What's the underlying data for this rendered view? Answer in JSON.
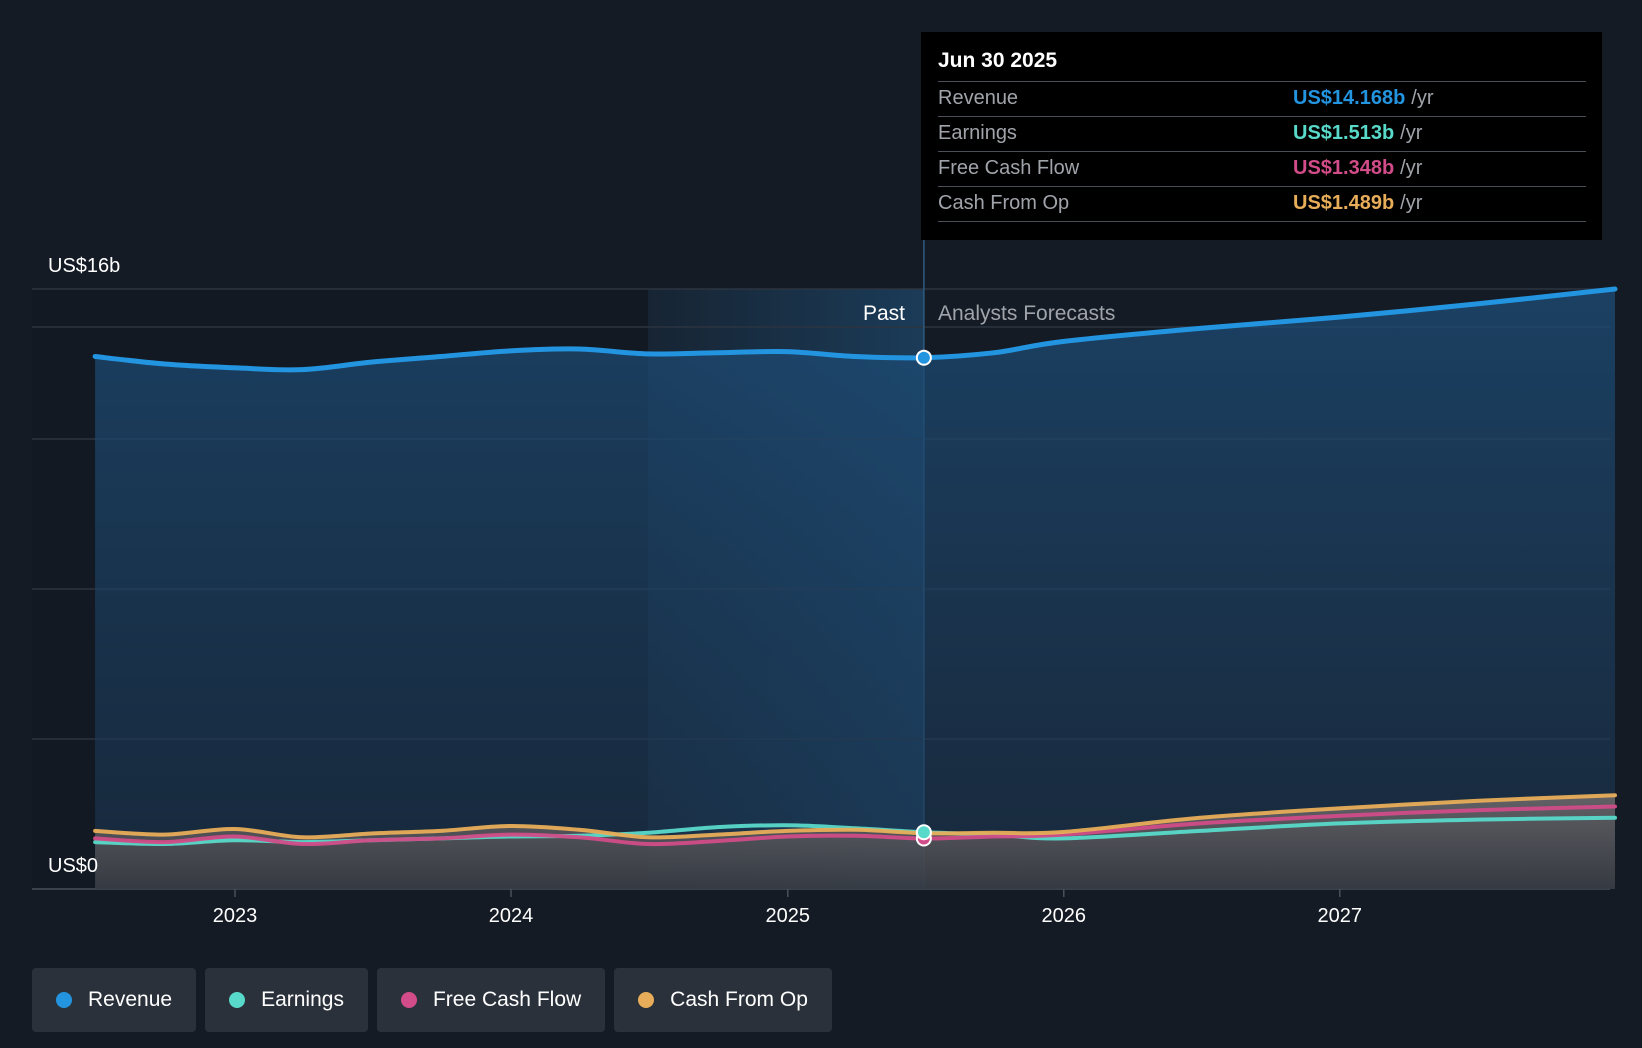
{
  "chart_data": {
    "type": "area",
    "x_ticks": [
      "2023",
      "2024",
      "2025",
      "2026",
      "2027"
    ],
    "y_axis_labels": {
      "top": "US$16b",
      "bottom": "US$0"
    },
    "ylim": [
      0,
      16
    ],
    "y_unit": "US$ billions",
    "divider_labels": {
      "past": "Past",
      "forecast": "Analysts Forecasts"
    },
    "past_forecast_split": "2025-06-30",
    "series": [
      {
        "name": "Revenue",
        "color": "#2394df",
        "points": [
          [
            "2022-06-30",
            14.2
          ],
          [
            "2022-09-30",
            14.0
          ],
          [
            "2022-12-31",
            13.9
          ],
          [
            "2023-03-31",
            13.85
          ],
          [
            "2023-06-30",
            14.05
          ],
          [
            "2023-09-30",
            14.2
          ],
          [
            "2023-12-31",
            14.35
          ],
          [
            "2024-03-31",
            14.4
          ],
          [
            "2024-06-30",
            14.27
          ],
          [
            "2024-09-30",
            14.3
          ],
          [
            "2024-12-31",
            14.33
          ],
          [
            "2025-03-31",
            14.2
          ],
          [
            "2025-06-30",
            14.168
          ],
          [
            "2025-09-30",
            14.3
          ],
          [
            "2025-12-31",
            14.6
          ],
          [
            "2026-06-30",
            14.95
          ],
          [
            "2026-12-31",
            15.25
          ],
          [
            "2027-06-30",
            15.6
          ],
          [
            "2027-12-31",
            16.0
          ]
        ]
      },
      {
        "name": "Earnings",
        "color": "#58d9c9",
        "points": [
          [
            "2022-06-30",
            1.25
          ],
          [
            "2022-09-30",
            1.2
          ],
          [
            "2022-12-31",
            1.3
          ],
          [
            "2023-03-31",
            1.25
          ],
          [
            "2023-06-30",
            1.3
          ],
          [
            "2023-09-30",
            1.35
          ],
          [
            "2023-12-31",
            1.4
          ],
          [
            "2024-03-31",
            1.42
          ],
          [
            "2024-06-30",
            1.5
          ],
          [
            "2024-09-30",
            1.65
          ],
          [
            "2024-12-31",
            1.7
          ],
          [
            "2025-03-31",
            1.62
          ],
          [
            "2025-06-30",
            1.513
          ],
          [
            "2025-09-30",
            1.45
          ],
          [
            "2025-12-31",
            1.35
          ],
          [
            "2026-06-30",
            1.55
          ],
          [
            "2026-12-31",
            1.75
          ],
          [
            "2027-06-30",
            1.85
          ],
          [
            "2027-12-31",
            1.9
          ]
        ]
      },
      {
        "name": "Free Cash Flow",
        "color": "#d14c88",
        "points": [
          [
            "2022-06-30",
            1.35
          ],
          [
            "2022-09-30",
            1.25
          ],
          [
            "2022-12-31",
            1.4
          ],
          [
            "2023-03-31",
            1.2
          ],
          [
            "2023-06-30",
            1.3
          ],
          [
            "2023-09-30",
            1.35
          ],
          [
            "2023-12-31",
            1.45
          ],
          [
            "2024-03-31",
            1.38
          ],
          [
            "2024-06-30",
            1.2
          ],
          [
            "2024-09-30",
            1.28
          ],
          [
            "2024-12-31",
            1.4
          ],
          [
            "2025-03-31",
            1.42
          ],
          [
            "2025-06-30",
            1.348
          ],
          [
            "2025-09-30",
            1.4
          ],
          [
            "2025-12-31",
            1.45
          ],
          [
            "2026-06-30",
            1.75
          ],
          [
            "2026-12-31",
            1.95
          ],
          [
            "2027-06-30",
            2.1
          ],
          [
            "2027-12-31",
            2.2
          ]
        ]
      },
      {
        "name": "Cash From Op",
        "color": "#e8ad59",
        "points": [
          [
            "2022-06-30",
            1.55
          ],
          [
            "2022-09-30",
            1.45
          ],
          [
            "2022-12-31",
            1.6
          ],
          [
            "2023-03-31",
            1.38
          ],
          [
            "2023-06-30",
            1.48
          ],
          [
            "2023-09-30",
            1.55
          ],
          [
            "2023-12-31",
            1.68
          ],
          [
            "2024-03-31",
            1.58
          ],
          [
            "2024-06-30",
            1.38
          ],
          [
            "2024-09-30",
            1.45
          ],
          [
            "2024-12-31",
            1.55
          ],
          [
            "2025-03-31",
            1.58
          ],
          [
            "2025-06-30",
            1.489
          ],
          [
            "2025-09-30",
            1.5
          ],
          [
            "2025-12-31",
            1.52
          ],
          [
            "2026-06-30",
            1.9
          ],
          [
            "2026-12-31",
            2.15
          ],
          [
            "2027-06-30",
            2.35
          ],
          [
            "2027-12-31",
            2.5
          ]
        ]
      }
    ],
    "grid": true,
    "legend_position": "bottom-left"
  },
  "tooltip": {
    "date": "Jun 30 2025",
    "rows": [
      {
        "label": "Revenue",
        "value": "US$14.168b",
        "unit": "/yr",
        "color": "#2394df"
      },
      {
        "label": "Earnings",
        "value": "US$1.513b",
        "unit": "/yr",
        "color": "#58d9c9"
      },
      {
        "label": "Free Cash Flow",
        "value": "US$1.348b",
        "unit": "/yr",
        "color": "#d14c88"
      },
      {
        "label": "Cash From Op",
        "value": "US$1.489b",
        "unit": "/yr",
        "color": "#e8ad59"
      }
    ]
  },
  "legend": [
    {
      "label": "Revenue",
      "color": "#2394df"
    },
    {
      "label": "Earnings",
      "color": "#58d9c9"
    },
    {
      "label": "Free Cash Flow",
      "color": "#d14c88"
    },
    {
      "label": "Cash From Op",
      "color": "#e8ad59"
    }
  ]
}
